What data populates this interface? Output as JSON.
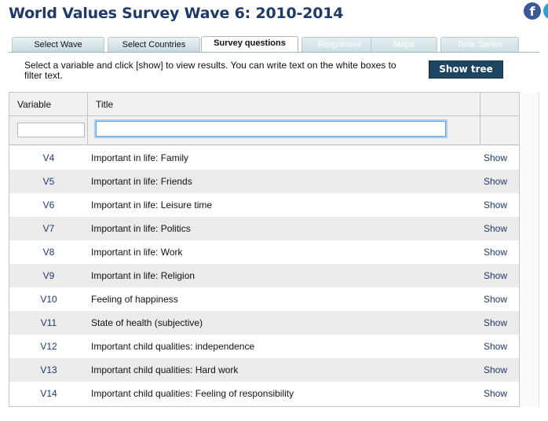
{
  "header": {
    "title": "World Values Survey Wave 6: 2010-2014",
    "social": [
      {
        "icon": "facebook-icon",
        "glyph": "f",
        "color": "#3b5998"
      },
      {
        "icon": "social-icon",
        "color": "#2aa0d8"
      }
    ]
  },
  "tabs": [
    {
      "label": "Select Wave",
      "state": "normal"
    },
    {
      "label": "Select Countries",
      "state": "normal"
    },
    {
      "label": "Survey questions",
      "state": "active"
    },
    {
      "label": "Responses",
      "state": "disabled"
    },
    {
      "label": "Maps",
      "state": "disabled"
    },
    {
      "label": "Time Series",
      "state": "disabled"
    }
  ],
  "instructions": "Select a variable and click [show] to view results. You can write text on the white boxes to filter text.",
  "show_tree_label": "Show tree",
  "table": {
    "columns": {
      "variable": "Variable",
      "title": "Title"
    },
    "filters": {
      "variable_value": "",
      "title_value": ""
    },
    "rows": [
      {
        "variable": "V4",
        "title": "Important in life: Family",
        "action": "Show"
      },
      {
        "variable": "V5",
        "title": "Important in life: Friends",
        "action": "Show"
      },
      {
        "variable": "V6",
        "title": "Important in life: Leisure time",
        "action": "Show"
      },
      {
        "variable": "V7",
        "title": "Important in life: Politics",
        "action": "Show"
      },
      {
        "variable": "V8",
        "title": "Important in life: Work",
        "action": "Show"
      },
      {
        "variable": "V9",
        "title": "Important in life: Religion",
        "action": "Show"
      },
      {
        "variable": "V10",
        "title": "Feeling of happiness",
        "action": "Show"
      },
      {
        "variable": "V11",
        "title": "State of health (subjective)",
        "action": "Show"
      },
      {
        "variable": "V12",
        "title": "Important child qualities: independence",
        "action": "Show"
      },
      {
        "variable": "V13",
        "title": "Important child qualities: Hard work",
        "action": "Show"
      },
      {
        "variable": "V14",
        "title": "Important child qualities: Feeling of responsibility",
        "action": "Show"
      }
    ]
  },
  "colors": {
    "title": "#1f3a68",
    "accent_button": "#1e4562",
    "link": "#1f3a68",
    "row_alt": "#ebebeb"
  }
}
